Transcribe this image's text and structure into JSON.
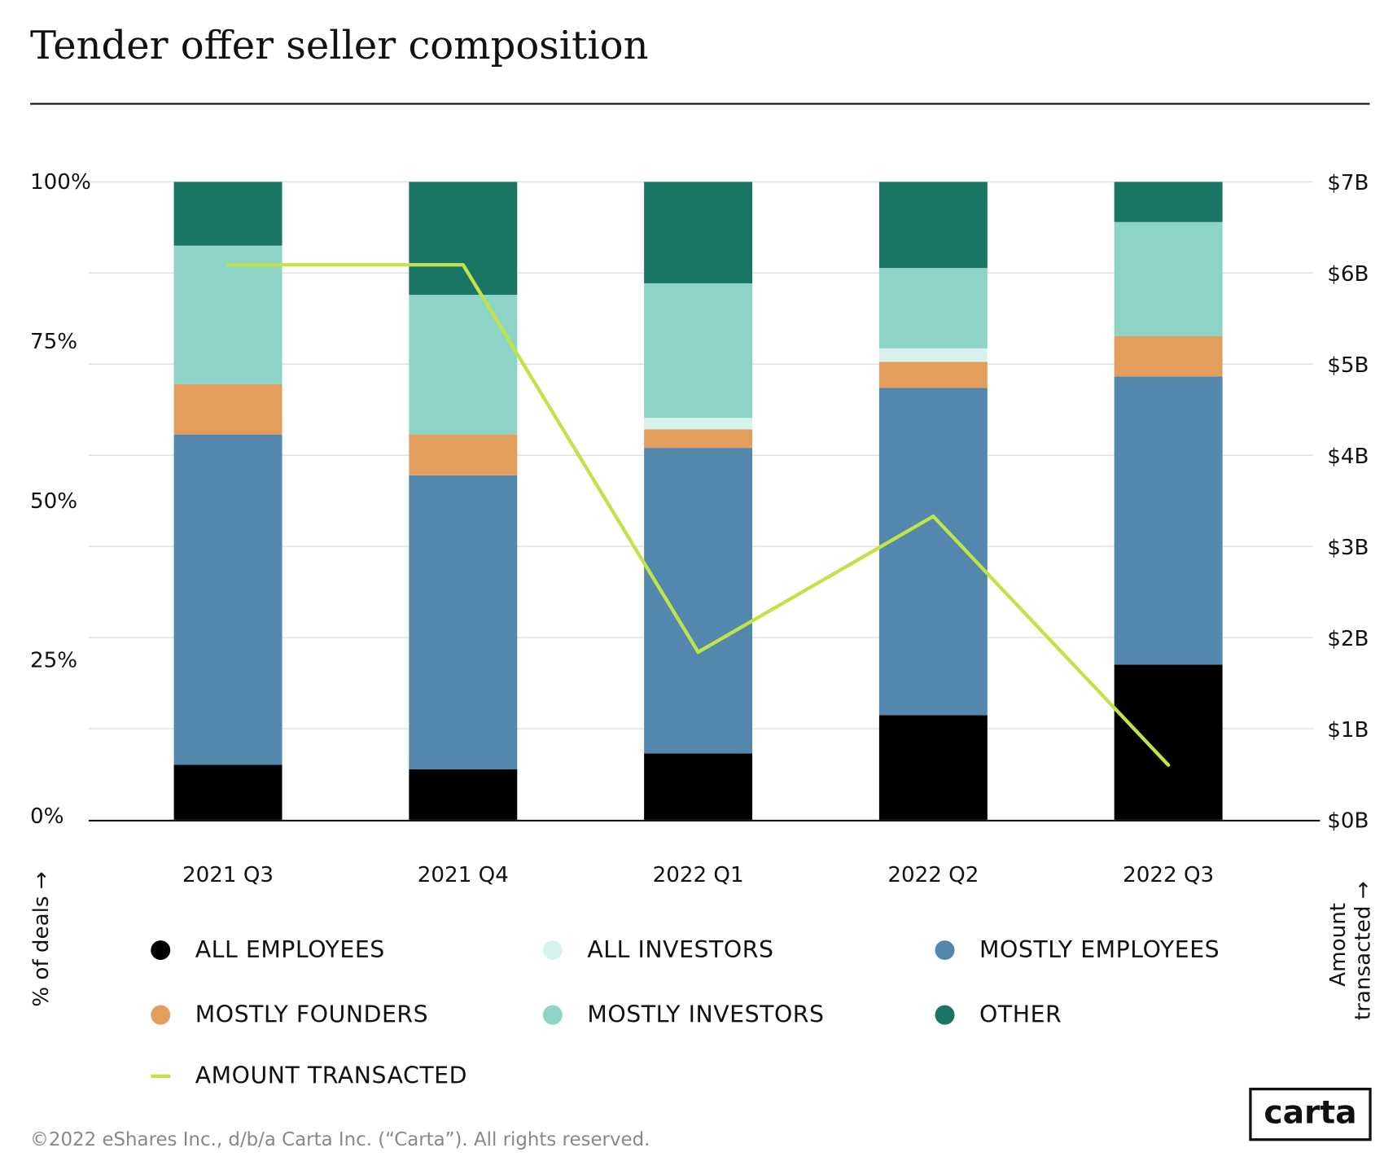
{
  "title": "Tender offer seller composition",
  "chart_data": {
    "type": "bar",
    "stacked": true,
    "categories": [
      "2021 Q3",
      "2021 Q4",
      "2022 Q1",
      "2022 Q2",
      "2022 Q3"
    ],
    "series": [
      {
        "name": "ALL EMPLOYEES",
        "color": "#000000",
        "values": [
          8.6,
          7.9,
          10.4,
          16.4,
          24.3
        ]
      },
      {
        "name": "MOSTLY EMPLOYEES",
        "color": "#5387AD",
        "values": [
          51.8,
          46.1,
          47.9,
          51.3,
          45.2
        ]
      },
      {
        "name": "MOSTLY FOUNDERS",
        "color": "#E39E5D",
        "values": [
          7.9,
          6.4,
          2.9,
          4.1,
          6.3
        ]
      },
      {
        "name": "ALL INVESTORS",
        "color": "#D8F3EE",
        "values": [
          0,
          0,
          1.8,
          2.1,
          0
        ]
      },
      {
        "name": "MOSTLY INVESTORS",
        "color": "#8DD4C7",
        "values": [
          21.7,
          21.9,
          21.1,
          12.6,
          17.9
        ]
      },
      {
        "name": "OTHER",
        "color": "#1A7565",
        "values": [
          10.0,
          17.7,
          15.9,
          13.5,
          6.3
        ]
      }
    ],
    "line": {
      "name": "AMOUNT TRANSACTED",
      "color": "#C1E34A",
      "axis": "right",
      "values": [
        6.09,
        6.09,
        1.84,
        3.33,
        0.6
      ]
    },
    "left_axis": {
      "label": "% of deals →",
      "ticks": [
        "0%",
        "25%",
        "50%",
        "75%",
        "100%"
      ],
      "range": [
        0,
        100
      ]
    },
    "right_axis": {
      "label": "Amount transacted →",
      "ticks": [
        "$0B",
        "$1B",
        "$2B",
        "$3B",
        "$4B",
        "$5B",
        "$6B",
        "$7B"
      ],
      "range": [
        0,
        7
      ]
    },
    "grid": true,
    "legend_placement": "bottom",
    "legend_order": [
      "ALL EMPLOYEES",
      "ALL INVESTORS",
      "MOSTLY EMPLOYEES",
      "MOSTLY FOUNDERS",
      "MOSTLY INVESTORS",
      "OTHER",
      "AMOUNT TRANSACTED"
    ]
  },
  "left_label": "% of deals →",
  "right_label_1": "Amount",
  "right_label_2": "transacted →",
  "footer": "©2022 eShares Inc., d/b/a Carta Inc. (“Carta”). All rights reserved.",
  "logo": "carta"
}
